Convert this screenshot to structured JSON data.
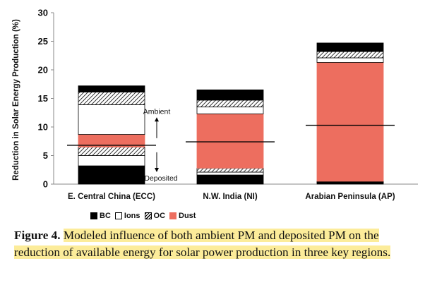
{
  "chart_data": {
    "type": "bar",
    "stacked": true,
    "title": "",
    "xlabel": "",
    "ylabel": "Reduction in Solar Energy Production (%)",
    "ylim": [
      0,
      30
    ],
    "yticks": [
      0,
      5,
      10,
      15,
      20,
      25,
      30
    ],
    "grid": false,
    "legend_position": "bottom",
    "categories": [
      "E. Central China (ECC)",
      "N.W. India (NI)",
      "Arabian Peninsula (AP)"
    ],
    "series": [
      {
        "name": "BC",
        "color": "#000000",
        "values": [
          3.2,
          1.6,
          0.3
        ],
        "section": "deposited"
      },
      {
        "name": "Ions",
        "color": "#ffffff",
        "values": [
          1.8,
          0.5,
          0.1
        ],
        "section": "deposited"
      },
      {
        "name": "OC",
        "color": "hatched",
        "values": [
          1.5,
          0.7,
          0.1
        ],
        "section": "deposited"
      },
      {
        "name": "Dust",
        "color": "#ed6e5f",
        "values": [
          2.2,
          9.5,
          20.8
        ],
        "section": "ambient"
      },
      {
        "name": "Ions",
        "color": "#ffffff",
        "values": [
          5.2,
          1.2,
          0.8
        ],
        "section": "ambient"
      },
      {
        "name": "OC",
        "color": "hatched",
        "values": [
          2.2,
          1.2,
          1.1
        ],
        "section": "ambient"
      },
      {
        "name": "BC",
        "color": "#000000",
        "values": [
          1.1,
          1.8,
          1.5
        ],
        "section": "ambient"
      }
    ],
    "divider_lines": [
      6.8,
      7.4,
      10.3
    ],
    "annotations": {
      "ambient": "Ambient",
      "deposited": "Deposited"
    },
    "legend": [
      {
        "name": "BC",
        "swatch": "bc"
      },
      {
        "name": "Ions",
        "swatch": "ions"
      },
      {
        "name": "OC",
        "swatch": "oc"
      },
      {
        "name": "Dust",
        "swatch": "dust"
      }
    ]
  },
  "caption": {
    "label": "Figure 4.",
    "text": "Modeled influence of both ambient PM and deposited PM on the reduction of available energy for solar power production in three key regions."
  }
}
